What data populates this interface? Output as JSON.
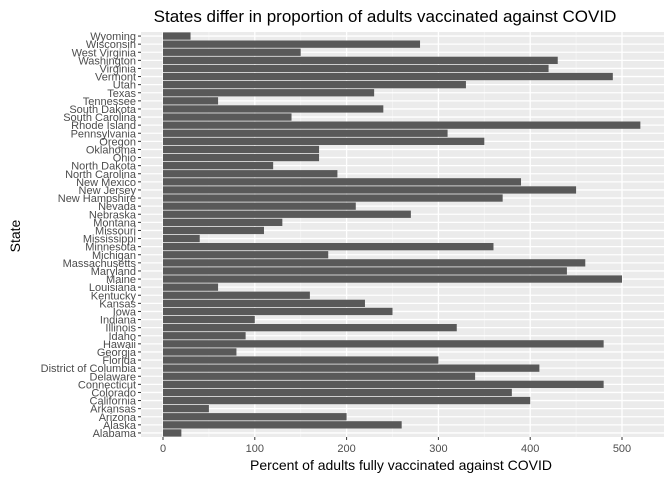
{
  "chart_data": {
    "type": "bar",
    "orientation": "horizontal",
    "title": "States differ in proportion of adults vaccinated against COVID",
    "xlabel": "Percent of adults fully vaccinated against COVID",
    "ylabel": "State",
    "xlim": [
      0,
      540
    ],
    "xticks": [
      "0",
      "100",
      "200",
      "300",
      "400",
      "500"
    ],
    "grid": true,
    "legend": "none",
    "colors": {
      "bar": "#595959",
      "panel": "#ebebeb",
      "grid_major": "#ffffff"
    },
    "categories": [
      "Alabama",
      "Alaska",
      "Arizona",
      "Arkansas",
      "California",
      "Colorado",
      "Connecticut",
      "Delaware",
      "District of Columbia",
      "Florida",
      "Georgia",
      "Hawaii",
      "Idaho",
      "Illinois",
      "Indiana",
      "Iowa",
      "Kansas",
      "Kentucky",
      "Louisiana",
      "Maine",
      "Maryland",
      "Massachusetts",
      "Michigan",
      "Minnesota",
      "Mississippi",
      "Missouri",
      "Montana",
      "Nebraska",
      "Nevada",
      "New Hampshire",
      "New Jersey",
      "New Mexico",
      "North Carolina",
      "North Dakota",
      "Ohio",
      "Oklahoma",
      "Oregon",
      "Pennsylvania",
      "Rhode Island",
      "South Carolina",
      "South Dakota",
      "Tennessee",
      "Texas",
      "Utah",
      "Vermont",
      "Virginia",
      "Washington",
      "West Virginia",
      "Wisconsin",
      "Wyoming"
    ],
    "values": [
      20,
      260,
      200,
      50,
      400,
      380,
      480,
      340,
      410,
      300,
      80,
      480,
      90,
      320,
      100,
      250,
      220,
      160,
      60,
      500,
      440,
      460,
      180,
      360,
      40,
      110,
      130,
      270,
      210,
      370,
      450,
      390,
      190,
      120,
      170,
      170,
      350,
      310,
      520,
      140,
      240,
      60,
      230,
      330,
      490,
      420,
      430,
      150,
      280,
      30
    ]
  }
}
